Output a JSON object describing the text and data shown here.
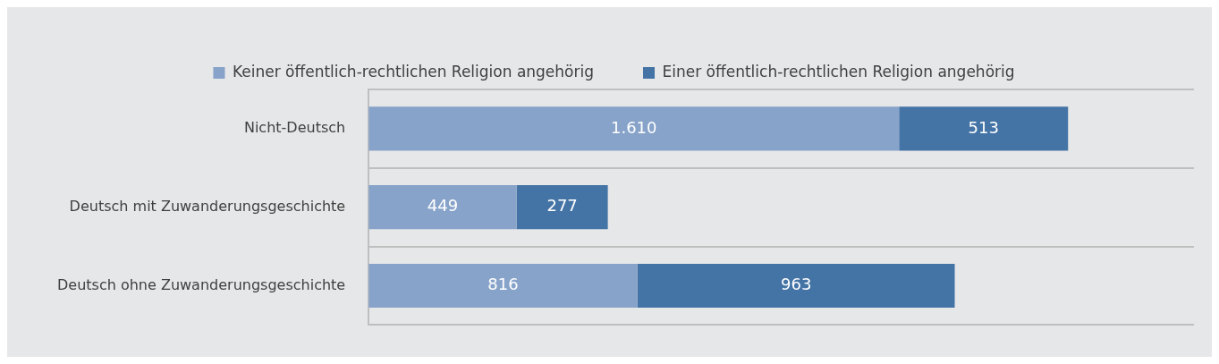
{
  "chart_data": {
    "type": "bar",
    "orientation": "horizontal",
    "stacked": true,
    "categories": [
      "Nicht-Deutsch",
      "Deutsch mit Zuwanderungsgeschichte",
      "Deutsch ohne Zuwanderungsgeschichte"
    ],
    "series": [
      {
        "name": "Keiner öffentlich-rechtlichen Religion angehörig",
        "color": "#87a3c9",
        "values": [
          1610,
          449,
          816
        ],
        "value_labels": [
          "1.610",
          "449",
          "816"
        ]
      },
      {
        "name": "Einer öffentlich-rechtlichen Religion angehörig",
        "color": "#4474a6",
        "values": [
          513,
          277,
          963
        ],
        "value_labels": [
          "513",
          "277",
          "963"
        ]
      }
    ],
    "legend": "top",
    "grid": "y"
  }
}
